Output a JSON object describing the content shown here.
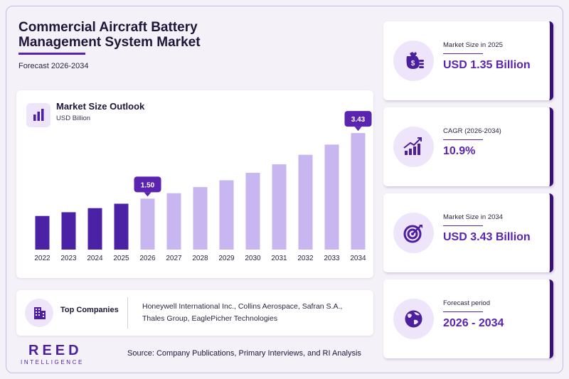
{
  "header": {
    "title_line1": "Commercial Aircraft Battery",
    "title_line2": "Management System Market",
    "subtitle": "Forecast 2026-2034"
  },
  "chart_card": {
    "title": "Market Size Outlook",
    "unit": "USD Billion",
    "icon": "bar-chart-icon"
  },
  "chart_data": {
    "type": "bar",
    "title": "Market Size Outlook",
    "ylabel": "USD Billion",
    "xlabel": "",
    "categories": [
      "2022",
      "2023",
      "2024",
      "2025",
      "2026",
      "2027",
      "2028",
      "2029",
      "2030",
      "2031",
      "2032",
      "2033",
      "2034"
    ],
    "values": [
      0.99,
      1.1,
      1.22,
      1.35,
      1.5,
      1.66,
      1.84,
      2.04,
      2.26,
      2.51,
      2.79,
      3.09,
      3.43
    ],
    "labeled_points": [
      {
        "category": "2026",
        "label": "1.50"
      },
      {
        "category": "2034",
        "label": "3.43"
      }
    ],
    "ylim": [
      0,
      3.6
    ],
    "grid": false,
    "colors": {
      "historical": "#4b22a6",
      "forecast": "#c7b6ef",
      "callout": "#5a23b0"
    }
  },
  "companies": {
    "label": "Top Companies",
    "icon": "building-icon",
    "line1": "Honeywell International Inc., Collins Aerospace, Safran S.A.,",
    "line2": "Thales Group, EaglePicher Technologies"
  },
  "stats": [
    {
      "label": "Market Size in 2025",
      "value": "USD 1.35 Billion",
      "icon": "money-bag-icon"
    },
    {
      "label": "CAGR (2026-2034)",
      "value": "10.9%",
      "icon": "growth-chart-icon"
    },
    {
      "label": "Market Size in 2034",
      "value": "USD 3.43 Billion",
      "icon": "target-icon"
    },
    {
      "label": "Forecast period",
      "value": "2026 - 2034",
      "icon": "globe-icon"
    }
  ],
  "footer": {
    "logo_main": "REED",
    "logo_sub": "INTELLIGENCE",
    "source": "Source: Company Publications, Primary Interviews, and RI Analysis"
  },
  "colors": {
    "accent": "#5a23b0",
    "dark": "#1f1538",
    "card_edge": "#3a0f7a"
  }
}
